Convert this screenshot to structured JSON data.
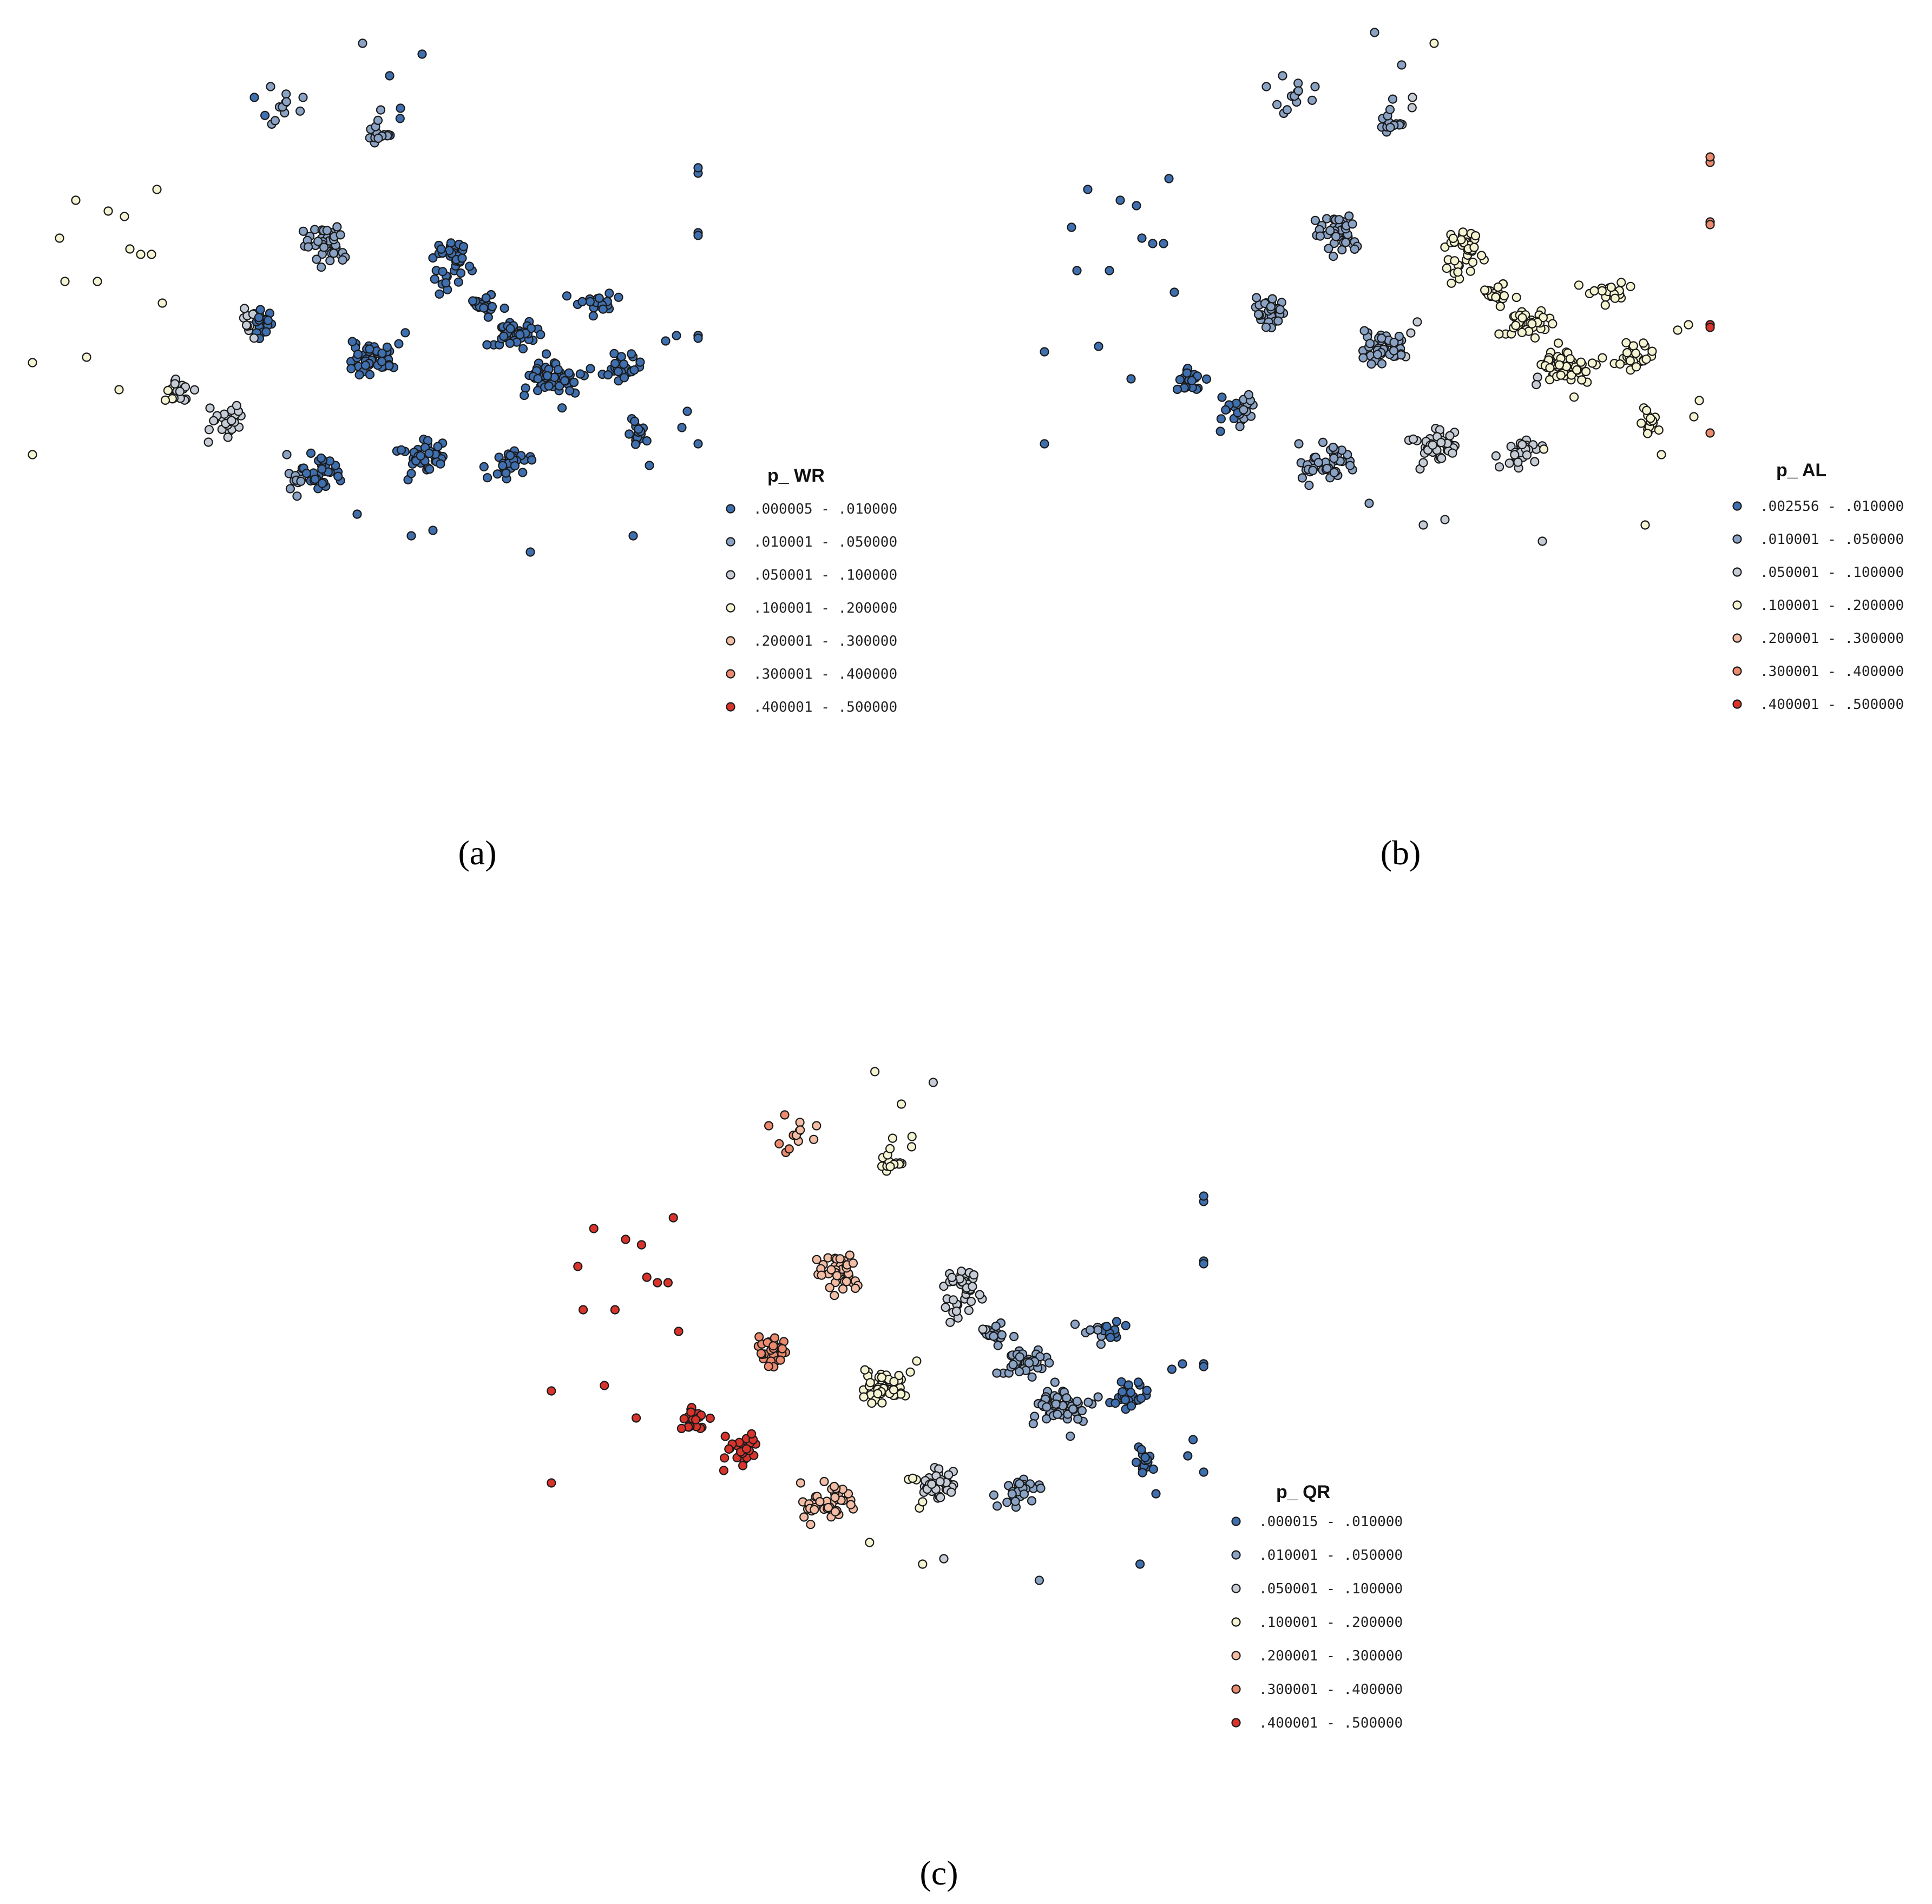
{
  "colors": {
    "class1": "#3f6fae",
    "class2": "#8aa2c4",
    "class3": "#c5ccd6",
    "class4": "#f4f3d2",
    "class5": "#f3bca4",
    "class6": "#ec8a6e",
    "class7": "#d8342c"
  },
  "classes": [
    ".000005 - .010000",
    ".010001 - .050000",
    ".050001 - .100000",
    ".100001 - .200000",
    ".200001 - .300000",
    ".300001 - .400000",
    ".400001 - .500000"
  ],
  "panels": [
    {
      "label": "(a)",
      "legend_title": "p_ WR",
      "legend": [
        ".000005 - .010000",
        ".010001 - .050000",
        ".050001 - .100000",
        ".100001 - .200000",
        ".200001 - .300000",
        ".300001 - .400000",
        ".400001 - .500000"
      ],
      "value_range": [
        5e-06,
        0.5
      ],
      "trend": "blue everywhere; lighter toward the west edge"
    },
    {
      "label": "(b)",
      "legend_title": "p_ AL",
      "legend": [
        ".002556 - .010000",
        ".010001 - .050000",
        ".050001 - .100000",
        ".100001 - .200000",
        ".200001 - .300000",
        ".300001 - .400000",
        ".400001 - .500000"
      ],
      "value_range": [
        0.002556,
        0.5
      ],
      "trend": "blue in the west, yellow toward the east, red at far east outliers"
    },
    {
      "label": "(c)",
      "legend_title": "p_ QR",
      "legend": [
        ".000015 - .010000",
        ".010001 - .050000",
        ".050001 - .100000",
        ".100001 - .200000",
        ".200001 - .300000",
        ".300001 - .400000",
        ".400001 - .500000"
      ],
      "value_range": [
        1.5e-05,
        0.5
      ],
      "trend": "red in the west, yellow in the middle, blue in the east"
    }
  ]
}
